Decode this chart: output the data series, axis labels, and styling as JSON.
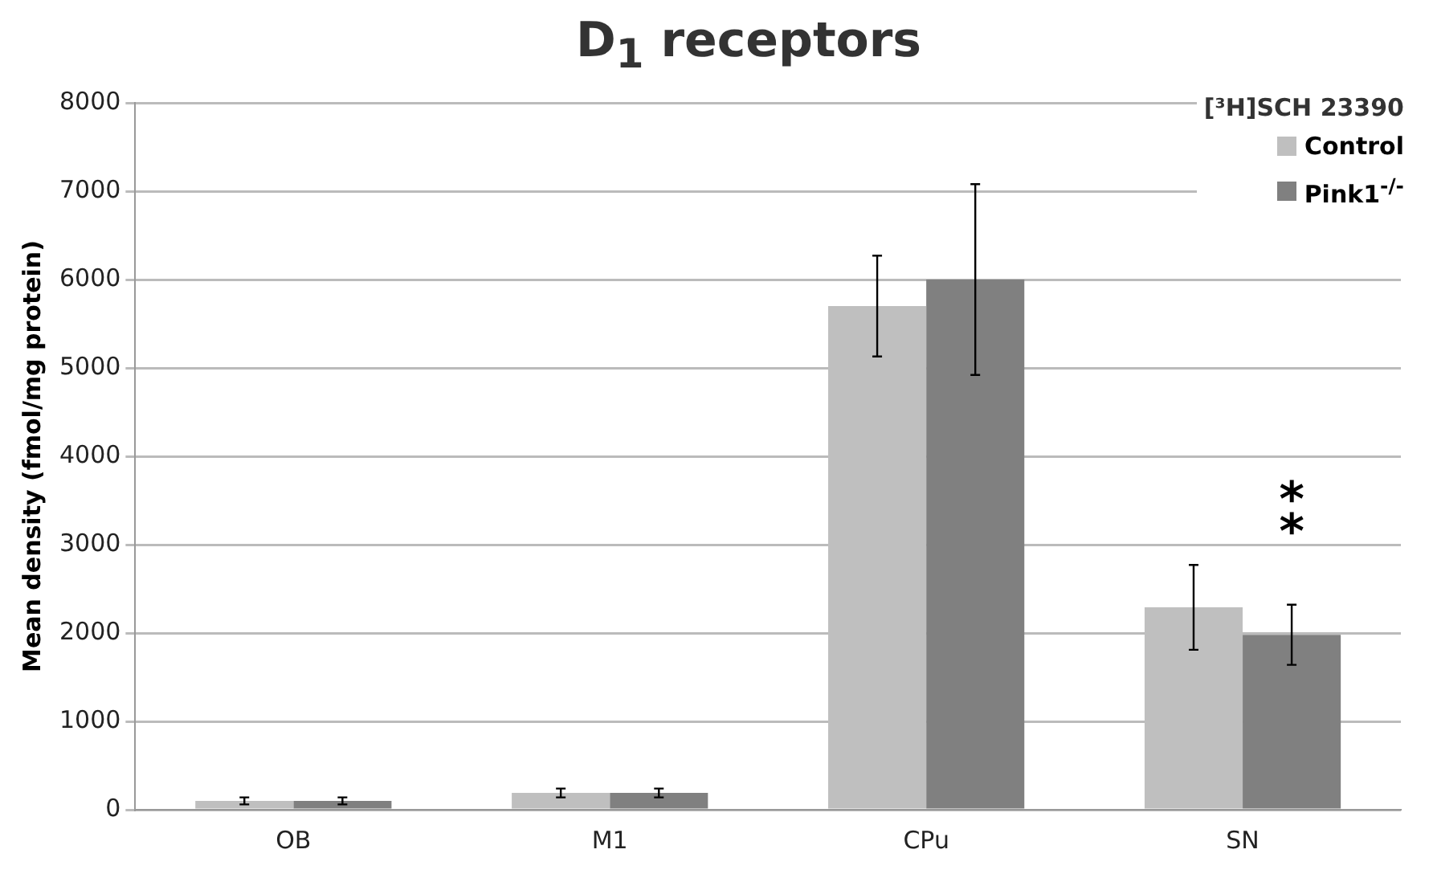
{
  "chart_data": {
    "type": "bar",
    "title": "D$_{1}$ receptors",
    "ylabel": "Mean density (fmol/mg protein)",
    "legend_title": "[³H]SCH 23390",
    "categories": [
      "OB",
      "M1",
      "CPu",
      "SN"
    ],
    "series": [
      {
        "name": "Control",
        "color": "#bfbfbf",
        "values": [
          100,
          190,
          5700,
          2290
        ],
        "errors": [
          40,
          50,
          570,
          480
        ]
      },
      {
        "name": "Pink1$^{-/-}$",
        "color": "#808080",
        "values": [
          100,
          190,
          6000,
          1980
        ],
        "errors": [
          40,
          50,
          1080,
          340
        ]
      }
    ],
    "annotations": [
      "**"
    ],
    "ylim": [
      0,
      8000
    ],
    "yticks": [
      0,
      1000,
      2000,
      3000,
      4000,
      5000,
      6000,
      7000,
      8000
    ],
    "grid": "y",
    "legend": "top right"
  }
}
